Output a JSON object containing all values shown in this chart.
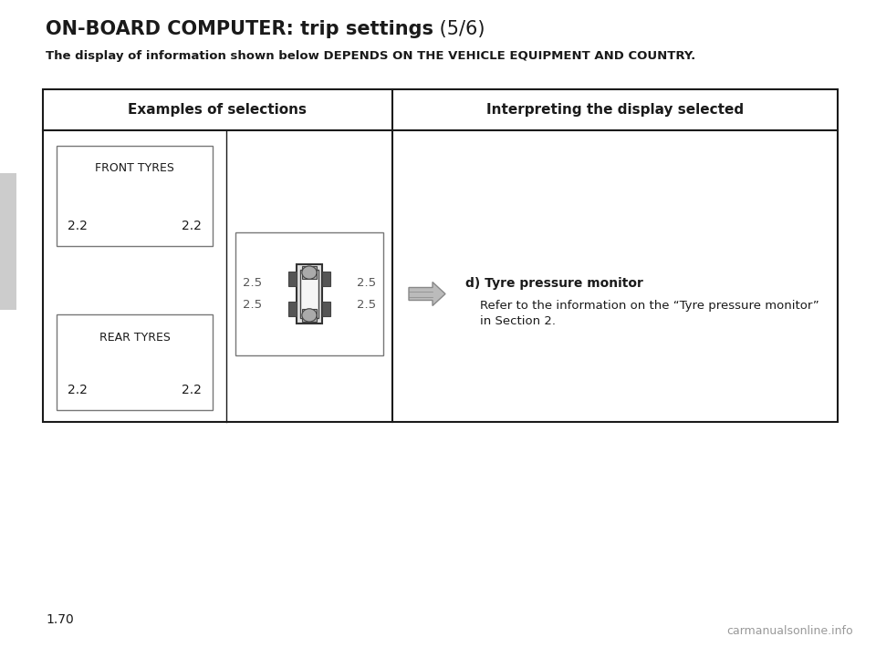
{
  "title_bold": "ON-BOARD COMPUTER: trip settings",
  "title_suffix": " (5/6)",
  "subtitle": "The display of information shown below DEPENDS ON THE VEHICLE EQUIPMENT AND COUNTRY.",
  "col1_header": "Examples of selections",
  "col2_header": "Interpreting the display selected",
  "front_tyres_label": "FRONT TYRES",
  "front_tyre_left": "2.2",
  "front_tyre_right": "2.2",
  "rear_tyres_label": "REAR TYRES",
  "rear_tyre_left": "2.2",
  "rear_tyre_right": "2.2",
  "display_values": [
    "2.5",
    "2.5",
    "2.5",
    "2.5"
  ],
  "interpretation_bold": "d) Tyre pressure monitor",
  "interpretation_line1": "Refer to the information on the “Tyre pressure monitor”",
  "interpretation_line2": "in Section 2.",
  "page_number": "1.70",
  "watermark": "carmanualsonline.info",
  "bg_color": "#ffffff",
  "border_color": "#1a1a1a",
  "text_color": "#1a1a1a"
}
